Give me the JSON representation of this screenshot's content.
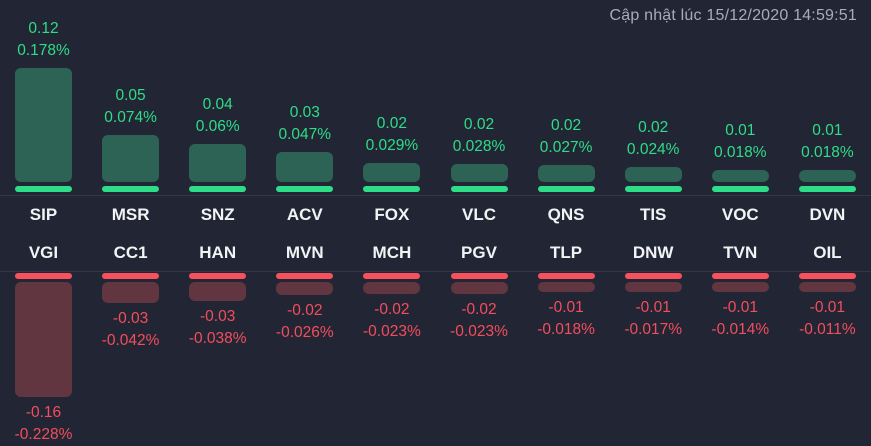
{
  "header": {
    "updated_text": "Cập nhật lúc 15/12/2020 14:59:51"
  },
  "colors": {
    "background": "#222634",
    "gain_bar": "#2d6355",
    "gain_accent": "#2edd88",
    "loss_bar": "#613641",
    "loss_accent": "#f8515e",
    "ticker_text": "#f2f3f5",
    "timestamp_text": "#a7acba"
  },
  "chart_data": {
    "type": "bar",
    "title": "",
    "xlabel": "",
    "ylabel": "",
    "legend": [],
    "grid": false,
    "layout": "two mirrored rows: gainers anchored to top baseline growing up, losers anchored to bottom baseline growing down",
    "gainers": {
      "direction": "up",
      "max_pct": 0.178,
      "items": [
        {
          "ticker": "SIP",
          "change": "0.12",
          "pct_label": "0.178%",
          "pct": 0.178
        },
        {
          "ticker": "MSR",
          "change": "0.05",
          "pct_label": "0.074%",
          "pct": 0.074
        },
        {
          "ticker": "SNZ",
          "change": "0.04",
          "pct_label": "0.06%",
          "pct": 0.06
        },
        {
          "ticker": "ACV",
          "change": "0.03",
          "pct_label": "0.047%",
          "pct": 0.047
        },
        {
          "ticker": "FOX",
          "change": "0.02",
          "pct_label": "0.029%",
          "pct": 0.029
        },
        {
          "ticker": "VLC",
          "change": "0.02",
          "pct_label": "0.028%",
          "pct": 0.028
        },
        {
          "ticker": "QNS",
          "change": "0.02",
          "pct_label": "0.027%",
          "pct": 0.027
        },
        {
          "ticker": "TIS",
          "change": "0.02",
          "pct_label": "0.024%",
          "pct": 0.024
        },
        {
          "ticker": "VOC",
          "change": "0.01",
          "pct_label": "0.018%",
          "pct": 0.018
        },
        {
          "ticker": "DVN",
          "change": "0.01",
          "pct_label": "0.018%",
          "pct": 0.018
        }
      ]
    },
    "losers": {
      "direction": "down",
      "max_pct": 0.228,
      "items": [
        {
          "ticker": "VGI",
          "change": "-0.16",
          "pct_label": "-0.228%",
          "pct": -0.228
        },
        {
          "ticker": "CC1",
          "change": "-0.03",
          "pct_label": "-0.042%",
          "pct": -0.042
        },
        {
          "ticker": "HAN",
          "change": "-0.03",
          "pct_label": "-0.038%",
          "pct": -0.038
        },
        {
          "ticker": "MVN",
          "change": "-0.02",
          "pct_label": "-0.026%",
          "pct": -0.026
        },
        {
          "ticker": "MCH",
          "change": "-0.02",
          "pct_label": "-0.023%",
          "pct": -0.023
        },
        {
          "ticker": "PGV",
          "change": "-0.02",
          "pct_label": "-0.023%",
          "pct": -0.023
        },
        {
          "ticker": "TLP",
          "change": "-0.01",
          "pct_label": "-0.018%",
          "pct": -0.018
        },
        {
          "ticker": "DNW",
          "change": "-0.01",
          "pct_label": "-0.017%",
          "pct": -0.017
        },
        {
          "ticker": "TVN",
          "change": "-0.01",
          "pct_label": "-0.014%",
          "pct": -0.014
        },
        {
          "ticker": "OIL",
          "change": "-0.01",
          "pct_label": "-0.011%",
          "pct": -0.011
        }
      ]
    }
  }
}
